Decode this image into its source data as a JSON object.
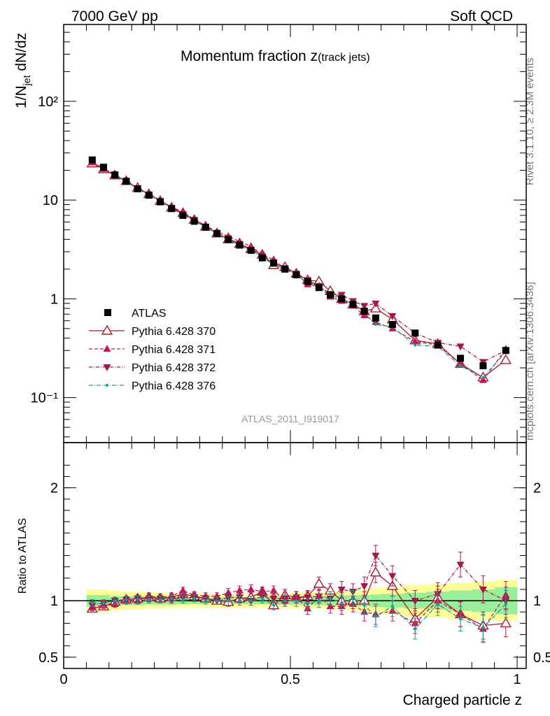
{
  "header": {
    "energy_label": "7000 GeV pp",
    "process_label": "Soft QCD",
    "side_label_rivet": "Rivet 3.1.10, ≥ 2.3M events",
    "side_label_mcplots": "mcplots.cern.ch [arXiv:1306.3436]",
    "analysis_id": "ATLAS_2011_I919017"
  },
  "chart_data": [
    {
      "type": "line",
      "panel": "main",
      "title": "Momentum fraction z(track jets)",
      "title_main": "Momentum fraction z",
      "title_sub": "(track jets)",
      "ylabel": "1/N_jet dN/dz",
      "yscale": "log",
      "ylim": [
        0.035,
        600
      ],
      "xlim": [
        0,
        1.02
      ],
      "y_ticks": [
        {
          "value": 0.1,
          "label": "10⁻¹"
        },
        {
          "value": 1,
          "label": "1"
        },
        {
          "value": 10,
          "label": "10"
        },
        {
          "value": 100,
          "label": "10²"
        }
      ],
      "legend_position": "middle-left",
      "x": [
        0.063,
        0.088,
        0.113,
        0.138,
        0.163,
        0.188,
        0.213,
        0.238,
        0.263,
        0.288,
        0.313,
        0.338,
        0.363,
        0.388,
        0.413,
        0.438,
        0.463,
        0.488,
        0.513,
        0.538,
        0.563,
        0.588,
        0.613,
        0.638,
        0.663,
        0.688,
        0.725,
        0.775,
        0.825,
        0.875,
        0.925,
        0.975
      ],
      "series": [
        {
          "name": "ATLAS",
          "color": "#000000",
          "marker": "square",
          "values": [
            25.5,
            21.5,
            18.0,
            15.5,
            13.0,
            11.2,
            9.6,
            8.2,
            7.0,
            6.1,
            5.3,
            4.6,
            4.0,
            3.5,
            3.1,
            2.6,
            2.3,
            2.0,
            1.75,
            1.5,
            1.3,
            1.1,
            1.0,
            0.88,
            0.75,
            0.64,
            0.55,
            0.45,
            0.34,
            0.25,
            0.21,
            0.3
          ]
        },
        {
          "name": "Pythia 6.428 370",
          "color": "#a91b2b",
          "marker": "triangle-open",
          "dash": "",
          "values": [
            23.5,
            20.5,
            17.8,
            15.6,
            13.3,
            11.5,
            9.8,
            8.4,
            7.4,
            6.3,
            5.4,
            4.6,
            4.0,
            3.6,
            3.2,
            2.8,
            2.2,
            2.1,
            1.8,
            1.55,
            1.5,
            1.2,
            1.0,
            0.88,
            0.75,
            0.8,
            0.62,
            0.38,
            0.35,
            0.22,
            0.16,
            0.24
          ]
        },
        {
          "name": "Pythia 6.428 371",
          "color": "#c2185b",
          "marker": "triangle-up",
          "dash": "5,3",
          "values": [
            24.0,
            20.6,
            17.5,
            15.5,
            13.0,
            11.6,
            9.9,
            8.5,
            7.6,
            6.4,
            5.5,
            4.8,
            4.3,
            3.8,
            3.4,
            2.8,
            2.5,
            2.0,
            1.8,
            1.4,
            1.35,
            1.05,
            0.95,
            0.85,
            0.68,
            0.58,
            0.5,
            0.37,
            0.34,
            0.22,
            0.15,
            0.31
          ]
        },
        {
          "name": "Pythia 6.428 372",
          "color": "#a3184a",
          "marker": "triangle-down",
          "dash": "5,2,1,2",
          "values": [
            24.5,
            21.0,
            18.1,
            15.6,
            13.2,
            11.4,
            9.8,
            8.3,
            7.2,
            6.3,
            5.4,
            4.6,
            4.1,
            3.6,
            3.1,
            2.7,
            2.35,
            2.05,
            1.8,
            1.55,
            1.35,
            1.12,
            1.1,
            0.95,
            0.85,
            0.9,
            0.67,
            0.45,
            0.36,
            0.33,
            0.23,
            0.3
          ]
        },
        {
          "name": "Pythia 6.428 376",
          "color": "#1a9c8c",
          "marker": "dot",
          "dash": "6,2,1,2",
          "values": [
            25.0,
            21.0,
            18.0,
            15.6,
            13.1,
            11.3,
            9.7,
            8.4,
            7.1,
            6.2,
            5.3,
            4.6,
            4.0,
            3.5,
            3.1,
            2.65,
            2.2,
            2.0,
            1.75,
            1.45,
            1.3,
            1.12,
            0.98,
            0.9,
            0.72,
            0.55,
            0.52,
            0.34,
            0.33,
            0.21,
            0.16,
            0.29
          ]
        }
      ]
    },
    {
      "type": "line",
      "panel": "ratio",
      "ylabel": "Ratio to ATLAS",
      "xlabel": "Charged particle z",
      "ylim": [
        0.4,
        2.4
      ],
      "xlim": [
        0,
        1.02
      ],
      "x_ticks": [
        {
          "value": 0,
          "label": "0"
        },
        {
          "value": 0.5,
          "label": "0.5"
        },
        {
          "value": 1,
          "label": "1"
        }
      ],
      "y_ticks": [
        {
          "value": 0.5,
          "label": "0.5"
        },
        {
          "value": 1,
          "label": "1"
        },
        {
          "value": 2,
          "label": "2"
        }
      ],
      "reference_line": 1,
      "band_inner_halfwidth": [
        0.05,
        0.05,
        0.04,
        0.04,
        0.04,
        0.035,
        0.035,
        0.035,
        0.03,
        0.03,
        0.03,
        0.03,
        0.03,
        0.03,
        0.03,
        0.03,
        0.035,
        0.035,
        0.035,
        0.04,
        0.04,
        0.045,
        0.045,
        0.05,
        0.05,
        0.055,
        0.06,
        0.07,
        0.08,
        0.09,
        0.1,
        0.12
      ],
      "band_outer_halfwidth": [
        0.1,
        0.1,
        0.09,
        0.08,
        0.08,
        0.07,
        0.07,
        0.06,
        0.06,
        0.06,
        0.06,
        0.06,
        0.06,
        0.06,
        0.06,
        0.06,
        0.06,
        0.06,
        0.07,
        0.07,
        0.07,
        0.08,
        0.08,
        0.09,
        0.1,
        0.11,
        0.12,
        0.14,
        0.15,
        0.16,
        0.17,
        0.18
      ],
      "series": [
        {
          "name": "Pythia 6.428 370",
          "values": [
            0.93,
            0.95,
            0.99,
            1.01,
            1.02,
            1.03,
            1.02,
            1.03,
            1.06,
            1.04,
            1.02,
            1.0,
            0.99,
            1.02,
            1.03,
            1.08,
            0.96,
            1.05,
            1.03,
            1.04,
            1.15,
            1.09,
            1.0,
            1.0,
            1.0,
            1.25,
            1.13,
            0.84,
            1.03,
            0.88,
            0.78,
            0.8
          ],
          "errors": [
            0.03,
            0.03,
            0.03,
            0.03,
            0.03,
            0.03,
            0.03,
            0.03,
            0.03,
            0.03,
            0.03,
            0.03,
            0.04,
            0.04,
            0.04,
            0.04,
            0.04,
            0.05,
            0.05,
            0.05,
            0.06,
            0.06,
            0.07,
            0.07,
            0.08,
            0.09,
            0.09,
            0.09,
            0.1,
            0.11,
            0.12,
            0.12
          ]
        },
        {
          "name": "Pythia 6.428 371",
          "values": [
            0.94,
            0.96,
            0.97,
            1.0,
            1.0,
            1.04,
            1.03,
            1.04,
            1.09,
            1.05,
            1.04,
            1.04,
            1.07,
            1.09,
            1.1,
            1.08,
            1.09,
            1.0,
            1.03,
            0.93,
            1.04,
            0.95,
            0.95,
            0.97,
            0.9,
            0.88,
            0.91,
            0.8,
            1.0,
            0.88,
            0.75,
            1.05
          ],
          "errors": [
            0.03,
            0.03,
            0.03,
            0.03,
            0.03,
            0.03,
            0.03,
            0.03,
            0.03,
            0.03,
            0.03,
            0.03,
            0.04,
            0.04,
            0.04,
            0.04,
            0.04,
            0.05,
            0.05,
            0.05,
            0.06,
            0.06,
            0.07,
            0.07,
            0.08,
            0.09,
            0.09,
            0.09,
            0.1,
            0.11,
            0.12,
            0.12
          ]
        },
        {
          "name": "Pythia 6.428 372",
          "values": [
            0.96,
            0.98,
            1.0,
            1.01,
            1.02,
            1.02,
            1.02,
            1.01,
            1.03,
            1.03,
            1.02,
            1.0,
            1.03,
            1.03,
            1.0,
            1.04,
            1.02,
            1.02,
            1.03,
            1.03,
            1.04,
            1.02,
            1.1,
            1.08,
            1.13,
            1.4,
            1.22,
            1.0,
            1.06,
            1.32,
            1.1,
            1.0
          ],
          "errors": [
            0.03,
            0.03,
            0.03,
            0.03,
            0.03,
            0.03,
            0.03,
            0.03,
            0.03,
            0.03,
            0.03,
            0.03,
            0.04,
            0.04,
            0.04,
            0.04,
            0.04,
            0.05,
            0.05,
            0.05,
            0.06,
            0.06,
            0.07,
            0.07,
            0.08,
            0.09,
            0.09,
            0.09,
            0.1,
            0.11,
            0.12,
            0.12
          ]
        },
        {
          "name": "Pythia 6.428 376",
          "values": [
            0.98,
            0.98,
            1.0,
            1.01,
            1.01,
            1.01,
            1.01,
            1.02,
            1.01,
            1.02,
            1.0,
            1.0,
            1.0,
            1.0,
            1.0,
            1.02,
            0.96,
            1.0,
            1.0,
            0.97,
            1.0,
            1.02,
            0.98,
            1.02,
            0.96,
            0.86,
            0.95,
            0.75,
            0.97,
            0.84,
            0.76,
            0.97
          ],
          "errors": [
            0.03,
            0.03,
            0.03,
            0.03,
            0.03,
            0.03,
            0.03,
            0.03,
            0.03,
            0.03,
            0.03,
            0.03,
            0.04,
            0.04,
            0.04,
            0.04,
            0.04,
            0.05,
            0.05,
            0.05,
            0.06,
            0.06,
            0.07,
            0.07,
            0.08,
            0.09,
            0.09,
            0.09,
            0.1,
            0.11,
            0.12,
            0.12
          ]
        }
      ]
    }
  ]
}
